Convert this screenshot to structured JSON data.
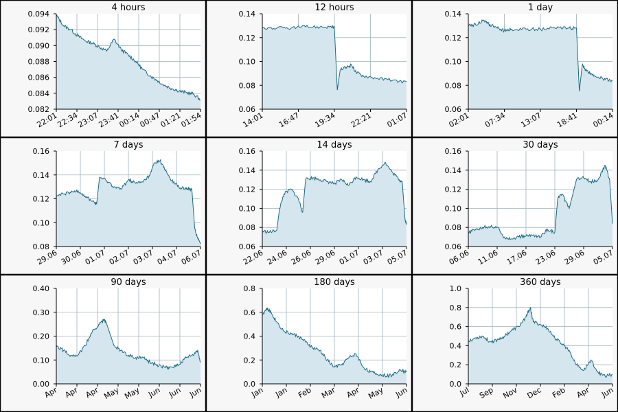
{
  "colors": {
    "line": "#1a6a85",
    "fill": "#d5e6ee",
    "grid": "#9fb3bd",
    "border": "#000000",
    "panel_bg": "#f7f7f7",
    "plot_bg": "#ffffff"
  },
  "chart_data": [
    {
      "type": "area",
      "title": "4 hours",
      "grid": true,
      "ylim": [
        0.082,
        0.094
      ],
      "yticks": [
        "0.082",
        "0.084",
        "0.086",
        "0.088",
        "0.090",
        "0.092",
        "0.094"
      ],
      "xticks": [
        "22:01",
        "22:34",
        "23:07",
        "23:41",
        "00:14",
        "00:47",
        "01:21",
        "01:54"
      ],
      "series": [
        {
          "x": [
            0,
            0.05,
            0.1,
            0.15,
            0.2,
            0.25,
            0.3,
            0.35,
            0.4,
            0.45,
            0.5,
            0.55,
            0.6,
            0.65,
            0.7,
            0.75,
            0.8,
            0.85,
            0.9,
            0.95,
            1
          ],
          "y": [
            0.0938,
            0.0925,
            0.092,
            0.0912,
            0.0906,
            0.0903,
            0.0898,
            0.0893,
            0.0908,
            0.0895,
            0.0888,
            0.088,
            0.087,
            0.0862,
            0.0856,
            0.085,
            0.0846,
            0.0843,
            0.0841,
            0.0839,
            0.0832
          ]
        }
      ]
    },
    {
      "type": "area",
      "title": "12 hours",
      "grid": true,
      "ylim": [
        0.06,
        0.14
      ],
      "yticks": [
        "0.06",
        "0.08",
        "0.10",
        "0.12",
        "0.14"
      ],
      "xticks": [
        "14:01",
        "16:47",
        "19:34",
        "22:21",
        "01:07"
      ],
      "series": [
        {
          "x": [
            0,
            0.1,
            0.2,
            0.3,
            0.4,
            0.48,
            0.5,
            0.52,
            0.54,
            0.58,
            0.62,
            0.65,
            0.7,
            0.8,
            0.9,
            1
          ],
          "y": [
            0.128,
            0.128,
            0.128,
            0.129,
            0.129,
            0.129,
            0.128,
            0.076,
            0.093,
            0.095,
            0.097,
            0.091,
            0.088,
            0.086,
            0.084,
            0.083
          ]
        }
      ]
    },
    {
      "type": "area",
      "title": "1 day",
      "grid": true,
      "ylim": [
        0.06,
        0.14
      ],
      "yticks": [
        "0.06",
        "0.08",
        "0.10",
        "0.12",
        "0.14"
      ],
      "xticks": [
        "02:01",
        "07:34",
        "13:07",
        "18:41",
        "00:14"
      ],
      "series": [
        {
          "x": [
            0,
            0.05,
            0.1,
            0.15,
            0.2,
            0.25,
            0.3,
            0.4,
            0.5,
            0.6,
            0.7,
            0.75,
            0.77,
            0.79,
            0.82,
            0.85,
            0.9,
            0.95,
            1
          ],
          "y": [
            0.13,
            0.131,
            0.134,
            0.131,
            0.128,
            0.126,
            0.127,
            0.127,
            0.127,
            0.128,
            0.128,
            0.128,
            0.075,
            0.097,
            0.092,
            0.09,
            0.087,
            0.085,
            0.084
          ]
        }
      ]
    },
    {
      "type": "area",
      "title": "7 days",
      "grid": true,
      "ylim": [
        0.08,
        0.16
      ],
      "yticks": [
        "0.08",
        "0.10",
        "0.12",
        "0.14",
        "0.16"
      ],
      "xticks": [
        "29.06",
        "30.06",
        "01.07",
        "02.07",
        "03.07",
        "04.07",
        "06.07"
      ],
      "series": [
        {
          "x": [
            0,
            0.05,
            0.1,
            0.15,
            0.2,
            0.25,
            0.28,
            0.3,
            0.35,
            0.4,
            0.45,
            0.5,
            0.55,
            0.6,
            0.65,
            0.68,
            0.72,
            0.75,
            0.8,
            0.85,
            0.9,
            0.94,
            0.96,
            0.98,
            1
          ],
          "y": [
            0.122,
            0.124,
            0.125,
            0.127,
            0.122,
            0.118,
            0.116,
            0.138,
            0.135,
            0.13,
            0.128,
            0.136,
            0.133,
            0.134,
            0.14,
            0.15,
            0.152,
            0.145,
            0.135,
            0.13,
            0.128,
            0.128,
            0.095,
            0.087,
            0.082
          ]
        }
      ]
    },
    {
      "type": "area",
      "title": "14 days",
      "grid": true,
      "ylim": [
        0.06,
        0.16
      ],
      "yticks": [
        "0.06",
        "0.08",
        "0.10",
        "0.12",
        "0.14",
        "0.16"
      ],
      "xticks": [
        "22.06",
        "24.06",
        "26.06",
        "29.06",
        "01.07",
        "03.07",
        "05.07"
      ],
      "series": [
        {
          "x": [
            0,
            0.05,
            0.1,
            0.12,
            0.15,
            0.2,
            0.25,
            0.28,
            0.3,
            0.35,
            0.4,
            0.45,
            0.5,
            0.55,
            0.6,
            0.65,
            0.7,
            0.75,
            0.8,
            0.85,
            0.9,
            0.95,
            0.97,
            0.99,
            1
          ],
          "y": [
            0.076,
            0.075,
            0.077,
            0.1,
            0.115,
            0.12,
            0.11,
            0.096,
            0.13,
            0.132,
            0.13,
            0.128,
            0.126,
            0.13,
            0.124,
            0.133,
            0.13,
            0.128,
            0.14,
            0.148,
            0.138,
            0.13,
            0.128,
            0.088,
            0.084
          ]
        }
      ]
    },
    {
      "type": "area",
      "title": "30 days",
      "grid": true,
      "ylim": [
        0.06,
        0.16
      ],
      "yticks": [
        "0.06",
        "0.08",
        "0.10",
        "0.12",
        "0.14",
        "0.16"
      ],
      "xticks": [
        "06.06",
        "11.06",
        "17.06",
        "23.06",
        "29.06",
        "05.07"
      ],
      "series": [
        {
          "x": [
            0,
            0.05,
            0.1,
            0.15,
            0.2,
            0.25,
            0.3,
            0.35,
            0.4,
            0.45,
            0.5,
            0.55,
            0.6,
            0.62,
            0.65,
            0.7,
            0.75,
            0.8,
            0.85,
            0.9,
            0.95,
            0.98,
            1
          ],
          "y": [
            0.074,
            0.078,
            0.08,
            0.081,
            0.08,
            0.07,
            0.068,
            0.07,
            0.071,
            0.072,
            0.07,
            0.078,
            0.075,
            0.11,
            0.115,
            0.1,
            0.13,
            0.132,
            0.128,
            0.13,
            0.145,
            0.13,
            0.084
          ]
        }
      ]
    },
    {
      "type": "area",
      "title": "90 days",
      "grid": true,
      "ylim": [
        0,
        0.4
      ],
      "yticks": [
        "0.00",
        "0.10",
        "0.20",
        "0.30",
        "0.40"
      ],
      "xticks": [
        "Apr",
        "Apr",
        "Apr",
        "May",
        "May",
        "Jun",
        "Jun",
        "Jun"
      ],
      "series": [
        {
          "x": [
            0,
            0.05,
            0.1,
            0.15,
            0.2,
            0.25,
            0.3,
            0.33,
            0.35,
            0.4,
            0.45,
            0.5,
            0.55,
            0.6,
            0.65,
            0.7,
            0.75,
            0.8,
            0.85,
            0.9,
            0.95,
            0.98,
            1
          ],
          "y": [
            0.16,
            0.14,
            0.12,
            0.12,
            0.16,
            0.22,
            0.25,
            0.27,
            0.25,
            0.16,
            0.14,
            0.12,
            0.11,
            0.11,
            0.09,
            0.08,
            0.07,
            0.07,
            0.08,
            0.11,
            0.12,
            0.14,
            0.09
          ]
        }
      ]
    },
    {
      "type": "area",
      "title": "180 days",
      "grid": true,
      "ylim": [
        0,
        0.8
      ],
      "yticks": [
        "0.0",
        "0.2",
        "0.4",
        "0.6",
        "0.8"
      ],
      "xticks": [
        "Jan",
        "Jan",
        "Feb",
        "Mar",
        "Apr",
        "May",
        "Jun"
      ],
      "series": [
        {
          "x": [
            0,
            0.03,
            0.06,
            0.1,
            0.15,
            0.2,
            0.25,
            0.3,
            0.35,
            0.4,
            0.45,
            0.5,
            0.55,
            0.6,
            0.65,
            0.7,
            0.75,
            0.8,
            0.85,
            0.9,
            0.95,
            1
          ],
          "y": [
            0.58,
            0.63,
            0.6,
            0.52,
            0.44,
            0.42,
            0.4,
            0.35,
            0.3,
            0.28,
            0.2,
            0.14,
            0.16,
            0.22,
            0.25,
            0.14,
            0.1,
            0.08,
            0.07,
            0.07,
            0.12,
            0.1
          ]
        }
      ]
    },
    {
      "type": "area",
      "title": "360 days",
      "grid": true,
      "ylim": [
        0,
        1.0
      ],
      "yticks": [
        "0.0",
        "0.2",
        "0.4",
        "0.6",
        "0.8",
        "1.0"
      ],
      "xticks": [
        "Jul",
        "Sep",
        "Nov",
        "Dec",
        "Feb",
        "Apr",
        "Jun"
      ],
      "series": [
        {
          "x": [
            0,
            0.05,
            0.1,
            0.15,
            0.2,
            0.25,
            0.3,
            0.35,
            0.4,
            0.43,
            0.45,
            0.5,
            0.55,
            0.6,
            0.65,
            0.7,
            0.75,
            0.8,
            0.85,
            0.9,
            0.95,
            1
          ],
          "y": [
            0.45,
            0.48,
            0.5,
            0.44,
            0.46,
            0.5,
            0.56,
            0.6,
            0.7,
            0.8,
            0.65,
            0.62,
            0.58,
            0.48,
            0.42,
            0.35,
            0.2,
            0.14,
            0.25,
            0.12,
            0.08,
            0.1
          ]
        }
      ]
    }
  ]
}
